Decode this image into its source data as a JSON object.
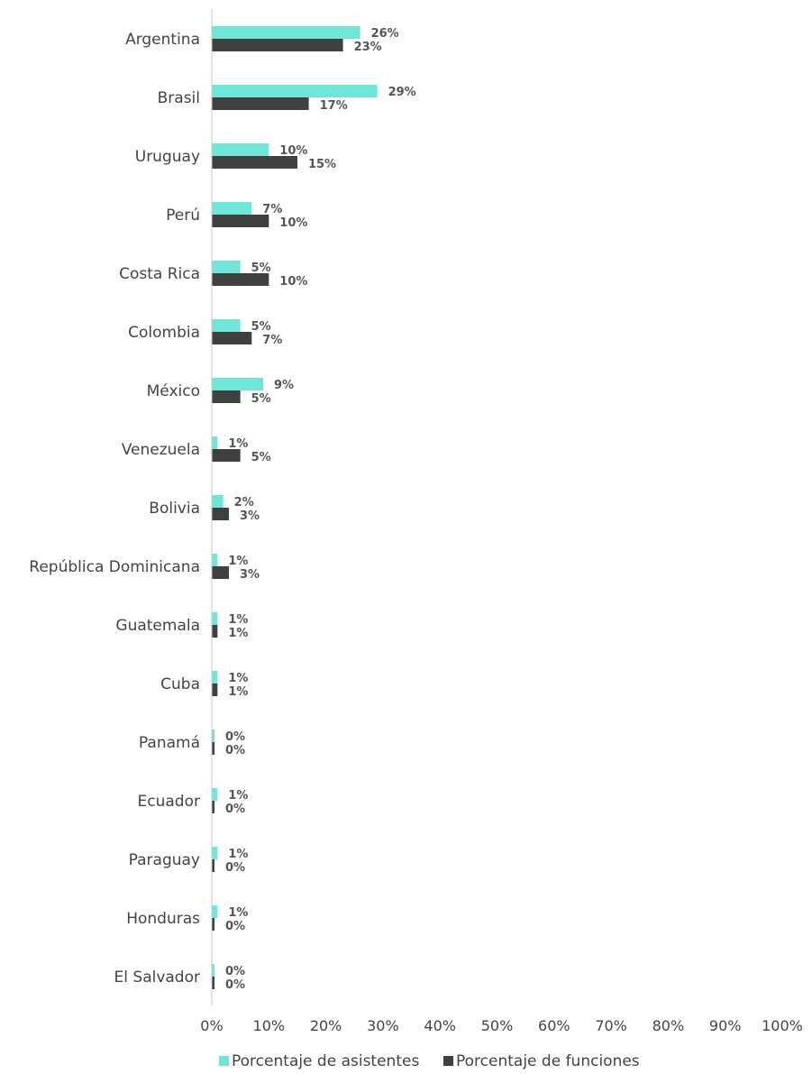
{
  "chart_data": {
    "type": "bar",
    "orientation": "horizontal",
    "categories": [
      "Argentina",
      "Brasil",
      "Uruguay",
      "Perú",
      "Costa Rica",
      "Colombia",
      "México",
      "Venezuela",
      "Bolivia",
      "República Dominicana",
      "Guatemala",
      "Cuba",
      "Panamá",
      "Ecuador",
      "Paraguay",
      "Honduras",
      "El Salvador"
    ],
    "series": [
      {
        "name": "Porcentaje de asistentes",
        "color": "#6EE7D9",
        "values": [
          26,
          29,
          10,
          7,
          5,
          5,
          9,
          1,
          2,
          1,
          1,
          1,
          0,
          1,
          1,
          1,
          0
        ],
        "labels": [
          "26%",
          "29%",
          "10%",
          "7%",
          "5%",
          "5%",
          "9%",
          "1%",
          "2%",
          "1%",
          "1%",
          "1%",
          "0%",
          "1%",
          "1%",
          "1%",
          "0%"
        ]
      },
      {
        "name": "Porcentaje de funciones",
        "color": "#404040",
        "values": [
          23,
          17,
          15,
          10,
          10,
          7,
          5,
          5,
          3,
          3,
          1,
          1,
          0,
          0,
          0,
          0,
          0
        ],
        "labels": [
          "23%",
          "17%",
          "15%",
          "10%",
          "10%",
          "7%",
          "5%",
          "5%",
          "3%",
          "3%",
          "1%",
          "1%",
          "0%",
          "0%",
          "0%",
          "0%",
          "0%"
        ]
      }
    ],
    "xlim": [
      0,
      100
    ],
    "xticks": [
      "0%",
      "10%",
      "20%",
      "30%",
      "40%",
      "50%",
      "60%",
      "70%",
      "80%",
      "90%",
      "100%"
    ],
    "title": "",
    "xlabel": "",
    "ylabel": "",
    "grid": false,
    "legend_position": "bottom"
  }
}
